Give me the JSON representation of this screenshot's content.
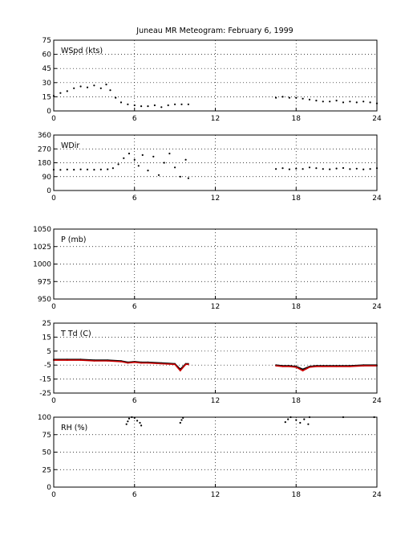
{
  "title": "Juneau MR Meteogram:  February  6, 1999",
  "chart_data": [
    {
      "type": "scatter",
      "label": "WSpd (kts)",
      "xlim": [
        0,
        24
      ],
      "ylim": [
        0,
        75
      ],
      "xticks": [
        0,
        6,
        12,
        18,
        24
      ],
      "yticks": [
        0,
        15,
        30,
        45,
        60,
        75
      ],
      "grid": true,
      "series": [
        {
          "color": "#000000",
          "x": [
            0.0,
            0.5,
            1.0,
            1.5,
            2.0,
            2.5,
            3.0,
            3.5,
            3.9,
            4.2,
            4.6,
            5.0,
            5.5,
            6.0,
            6.5,
            7.0,
            7.5,
            8.0,
            8.5,
            9.0,
            9.5,
            10.0,
            16.5,
            17.0,
            17.5,
            18.0,
            18.5,
            19.0,
            19.5,
            20.0,
            20.5,
            21.0,
            21.5,
            22.0,
            22.5,
            23.0,
            23.5,
            24.0
          ],
          "y": [
            16,
            19,
            21,
            24,
            26,
            25,
            27,
            24,
            28,
            22,
            14,
            9,
            7,
            6,
            5,
            5,
            6,
            4,
            6,
            7,
            7,
            7,
            14,
            15,
            14,
            14,
            13,
            12,
            11,
            10,
            10,
            11,
            9,
            10,
            9,
            10,
            9,
            8
          ]
        }
      ]
    },
    {
      "type": "scatter",
      "label": "WDir",
      "xlim": [
        0,
        24
      ],
      "ylim": [
        0,
        360
      ],
      "xticks": [
        0,
        6,
        12,
        18,
        24
      ],
      "yticks": [
        0,
        90,
        180,
        270,
        360
      ],
      "grid": true,
      "series": [
        {
          "color": "#000000",
          "x": [
            0.0,
            0.5,
            1.0,
            1.5,
            2.0,
            2.5,
            3.0,
            3.5,
            4.0,
            4.4,
            4.8,
            5.2,
            5.6,
            6.0,
            6.3,
            6.6,
            7.0,
            7.4,
            7.8,
            8.2,
            8.6,
            9.0,
            9.4,
            9.8,
            10.0,
            16.5,
            17.0,
            17.5,
            18.0,
            18.5,
            19.0,
            19.5,
            20.0,
            20.5,
            21.0,
            21.5,
            22.0,
            22.5,
            23.0,
            23.5,
            24.0
          ],
          "y": [
            135,
            134,
            136,
            135,
            137,
            136,
            135,
            136,
            138,
            145,
            170,
            210,
            240,
            200,
            160,
            230,
            130,
            220,
            100,
            180,
            240,
            150,
            90,
            200,
            80,
            140,
            145,
            138,
            142,
            140,
            150,
            145,
            140,
            138,
            143,
            146,
            139,
            142,
            137,
            140,
            145
          ]
        }
      ]
    },
    {
      "type": "scatter",
      "label": "P (mb)",
      "xlim": [
        0,
        24
      ],
      "ylim": [
        950,
        1050
      ],
      "xticks": [
        0,
        6,
        12,
        18,
        24
      ],
      "yticks": [
        950,
        975,
        1000,
        1025,
        1050
      ],
      "grid": true,
      "series": []
    },
    {
      "type": "line",
      "label": "T Td (C)",
      "xlim": [
        0,
        24
      ],
      "ylim": [
        -25,
        25
      ],
      "xticks": [
        0,
        6,
        12,
        18,
        24
      ],
      "yticks": [
        -25,
        -15,
        -5,
        5,
        15,
        25
      ],
      "grid": true,
      "series": [
        {
          "color": "#000000",
          "x": [
            0,
            1,
            2,
            3,
            4,
            5,
            5.5,
            6,
            6.5,
            7,
            8,
            9,
            9.4,
            9.8,
            10,
            16.5,
            17,
            17.5,
            18,
            18.5,
            19,
            19.5,
            20,
            21,
            22,
            23,
            24
          ],
          "y": [
            -1,
            -1,
            -1,
            -1.5,
            -1.5,
            -2,
            -3,
            -2.5,
            -3,
            -3,
            -3.5,
            -4,
            -8,
            -4,
            -4,
            -5,
            -5.5,
            -5.5,
            -6,
            -8,
            -6,
            -5.5,
            -5.5,
            -5.5,
            -5.5,
            -5,
            -5
          ]
        },
        {
          "color": "#cc0000",
          "x": [
            0,
            1,
            2,
            3,
            4,
            5,
            5.5,
            6,
            6.5,
            7,
            8,
            9,
            9.4,
            9.8,
            10,
            16.5,
            17,
            17.5,
            18,
            18.5,
            19,
            19.5,
            20,
            21,
            22,
            23,
            24
          ],
          "y": [
            -1.5,
            -1.5,
            -1.5,
            -2,
            -2,
            -2.5,
            -3.5,
            -3,
            -3.5,
            -3.5,
            -4,
            -4.5,
            -9,
            -4.5,
            -4.5,
            -5.5,
            -6,
            -6,
            -6.5,
            -9,
            -6.5,
            -6,
            -6,
            -6,
            -6,
            -5.5,
            -5.5
          ]
        }
      ]
    },
    {
      "type": "scatter",
      "label": "RH (%)",
      "xlim": [
        0,
        24
      ],
      "ylim": [
        0,
        100
      ],
      "xticks": [
        0,
        6,
        12,
        18,
        24
      ],
      "yticks": [
        0,
        25,
        50,
        75,
        100
      ],
      "grid": true,
      "series": [
        {
          "color": "#000000",
          "x": [
            5.4,
            5.5,
            5.6,
            5.8,
            6.0,
            6.2,
            6.4,
            6.5,
            9.4,
            9.5,
            9.6,
            17.2,
            17.4,
            17.6,
            18.0,
            18.3,
            18.6,
            18.9,
            19.0,
            21.5,
            23.8
          ],
          "y": [
            90,
            94,
            98,
            100,
            99,
            95,
            92,
            88,
            92,
            96,
            99,
            93,
            97,
            100,
            96,
            92,
            97,
            90,
            100,
            100,
            100
          ]
        }
      ]
    }
  ]
}
